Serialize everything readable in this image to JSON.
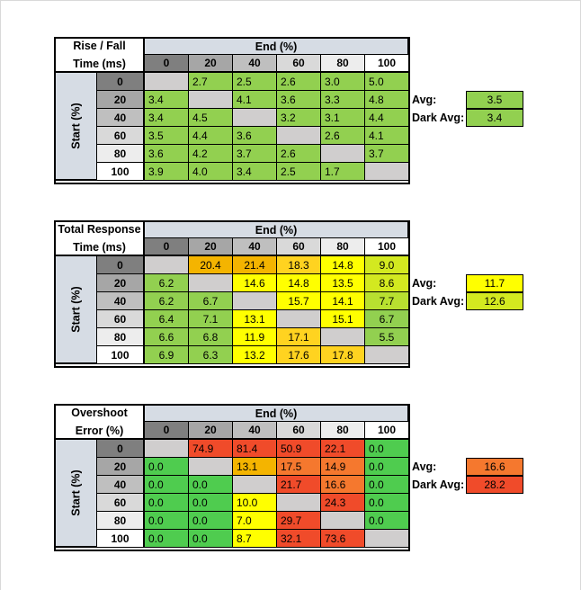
{
  "chart_data": [
    {
      "type": "heatmap",
      "title_lines": [
        "Rise / Fall",
        "Time (ms)"
      ],
      "col_axis_label": "End (%)",
      "row_axis_label": "Start (%)",
      "columns": [
        "0",
        "20",
        "40",
        "60",
        "80",
        "100"
      ],
      "rows": [
        "0",
        "20",
        "40",
        "60",
        "80",
        "100"
      ],
      "values": [
        [
          "",
          "2.7",
          "2.5",
          "2.6",
          "3.0",
          "5.0"
        ],
        [
          "3.4",
          "",
          "4.1",
          "3.6",
          "3.3",
          "4.8"
        ],
        [
          "3.4",
          "4.5",
          "",
          "3.2",
          "3.1",
          "4.4"
        ],
        [
          "3.5",
          "4.4",
          "3.6",
          "",
          "2.6",
          "4.1"
        ],
        [
          "3.6",
          "4.2",
          "3.7",
          "2.6",
          "",
          "3.7"
        ],
        [
          "3.9",
          "4.0",
          "3.4",
          "2.5",
          "1.7",
          ""
        ]
      ],
      "colors": [
        [
          "#d0cece",
          "#92d050",
          "#92d050",
          "#92d050",
          "#92d050",
          "#92d050"
        ],
        [
          "#92d050",
          "#d0cece",
          "#92d050",
          "#92d050",
          "#92d050",
          "#92d050"
        ],
        [
          "#92d050",
          "#92d050",
          "#d0cece",
          "#92d050",
          "#92d050",
          "#92d050"
        ],
        [
          "#92d050",
          "#92d050",
          "#92d050",
          "#d0cece",
          "#92d050",
          "#92d050"
        ],
        [
          "#92d050",
          "#92d050",
          "#92d050",
          "#92d050",
          "#d0cece",
          "#92d050"
        ],
        [
          "#92d050",
          "#92d050",
          "#92d050",
          "#92d050",
          "#92d050",
          "#d0cece"
        ]
      ],
      "center_values": false,
      "avg_label": "Avg:",
      "avg_value": "3.5",
      "avg_color": "#92d050",
      "dark_avg_label": "Dark Avg:",
      "dark_avg_value": "3.4",
      "dark_avg_color": "#92d050"
    },
    {
      "type": "heatmap",
      "title_lines": [
        "Total Response",
        "Time (ms)"
      ],
      "col_axis_label": "End (%)",
      "row_axis_label": "Start (%)",
      "columns": [
        "0",
        "20",
        "40",
        "60",
        "80",
        "100"
      ],
      "rows": [
        "0",
        "20",
        "40",
        "60",
        "80",
        "100"
      ],
      "values": [
        [
          "",
          "20.4",
          "21.4",
          "18.3",
          "14.8",
          "9.0"
        ],
        [
          "6.2",
          "",
          "14.6",
          "14.8",
          "13.5",
          "8.6"
        ],
        [
          "6.2",
          "6.7",
          "",
          "15.7",
          "14.1",
          "7.7"
        ],
        [
          "6.4",
          "7.1",
          "13.1",
          "",
          "15.1",
          "6.7"
        ],
        [
          "6.6",
          "6.8",
          "11.9",
          "17.1",
          "",
          "5.5"
        ],
        [
          "6.9",
          "6.3",
          "13.2",
          "17.6",
          "17.8",
          ""
        ]
      ],
      "colors": [
        [
          "#d0cece",
          "#f4b400",
          "#f4b400",
          "#ffd320",
          "#ffff00",
          "#d3e920"
        ],
        [
          "#92d050",
          "#d0cece",
          "#ffff00",
          "#ffff00",
          "#ffff00",
          "#d3e920"
        ],
        [
          "#92d050",
          "#92d050",
          "#d0cece",
          "#ffff00",
          "#ffff00",
          "#b8e030"
        ],
        [
          "#92d050",
          "#92d050",
          "#ffff00",
          "#d0cece",
          "#ffff00",
          "#92d050"
        ],
        [
          "#92d050",
          "#92d050",
          "#ffff00",
          "#ffd320",
          "#d0cece",
          "#92d050"
        ],
        [
          "#92d050",
          "#92d050",
          "#ffff00",
          "#ffd320",
          "#ffd320",
          "#d0cece"
        ]
      ],
      "center_values": true,
      "avg_label": "Avg:",
      "avg_value": "11.7",
      "avg_color": "#ffff00",
      "dark_avg_label": "Dark Avg:",
      "dark_avg_value": "12.6",
      "dark_avg_color": "#d3e920"
    },
    {
      "type": "heatmap",
      "title_lines": [
        "Overshoot",
        "Error (%)"
      ],
      "col_axis_label": "End (%)",
      "row_axis_label": "Start (%)",
      "columns": [
        "0",
        "20",
        "40",
        "60",
        "80",
        "100"
      ],
      "rows": [
        "0",
        "20",
        "40",
        "60",
        "80",
        "100"
      ],
      "values": [
        [
          "",
          "74.9",
          "81.4",
          "50.9",
          "22.1",
          "0.0"
        ],
        [
          "0.0",
          "",
          "13.1",
          "17.5",
          "14.9",
          "0.0"
        ],
        [
          "0.0",
          "0.0",
          "",
          "21.7",
          "16.6",
          "0.0"
        ],
        [
          "0.0",
          "0.0",
          "10.0",
          "",
          "24.3",
          "0.0"
        ],
        [
          "0.0",
          "0.0",
          "7.0",
          "29.7",
          "",
          "0.0"
        ],
        [
          "0.0",
          "0.0",
          "8.7",
          "32.1",
          "73.6",
          ""
        ]
      ],
      "colors": [
        [
          "#d0cece",
          "#f04b2a",
          "#f04b2a",
          "#f04b2a",
          "#f04b2a",
          "#4fcc4f"
        ],
        [
          "#4fcc4f",
          "#d0cece",
          "#f4b400",
          "#f5782e",
          "#f5782e",
          "#4fcc4f"
        ],
        [
          "#4fcc4f",
          "#4fcc4f",
          "#d0cece",
          "#f04b2a",
          "#f5782e",
          "#4fcc4f"
        ],
        [
          "#4fcc4f",
          "#4fcc4f",
          "#ffff00",
          "#d0cece",
          "#f04b2a",
          "#4fcc4f"
        ],
        [
          "#4fcc4f",
          "#4fcc4f",
          "#ffff00",
          "#f04b2a",
          "#d0cece",
          "#4fcc4f"
        ],
        [
          "#4fcc4f",
          "#4fcc4f",
          "#ffff00",
          "#f04b2a",
          "#f04b2a",
          "#d0cece"
        ]
      ],
      "center_values": false,
      "avg_label": "Avg:",
      "avg_value": "16.6",
      "avg_color": "#f5782e",
      "dark_avg_label": "Dark Avg:",
      "dark_avg_value": "28.2",
      "dark_avg_color": "#f04b2a"
    }
  ],
  "header_colors": {
    "col_bg": [
      "#7f7f7f",
      "#a6a6a6",
      "#bfbfbf",
      "#d9d9d9",
      "#ededed",
      "#ffffff"
    ],
    "row_bg": [
      "#7f7f7f",
      "#a6a6a6",
      "#bfbfbf",
      "#d9d9d9",
      "#ededed",
      "#ffffff"
    ]
  }
}
